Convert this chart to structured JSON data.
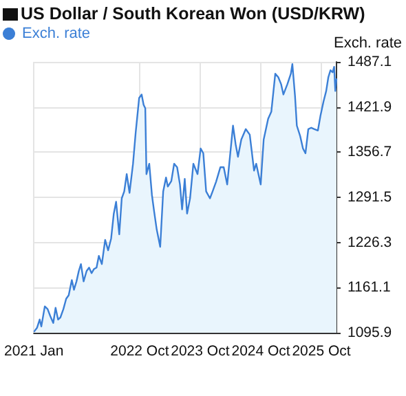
{
  "chart_data": {
    "type": "area",
    "title": "US Dollar / South Korean Won (USD/KRW)",
    "ylabel": "Exch. rate",
    "xlim": [
      "2021-01-01",
      "2025-12-31"
    ],
    "xticks": [
      {
        "value": "2021-01-01",
        "label": "2021 Jan"
      },
      {
        "value": "2022-10-01",
        "label": "2022 Oct"
      },
      {
        "value": "2023-10-01",
        "label": "2023 Oct"
      },
      {
        "value": "2024-10-01",
        "label": "2024 Oct"
      },
      {
        "value": "2025-10-01",
        "label": "2025 Oct"
      }
    ],
    "ylim": [
      1095.9,
      1487.1
    ],
    "yticks": [
      1095.9,
      1161.1,
      1226.3,
      1291.5,
      1356.7,
      1421.9,
      1487.1
    ],
    "grid": true,
    "legend": "top left",
    "marker": "none",
    "line_style": "solid",
    "series": [
      {
        "name": "Exch. rate",
        "color": "#3b7fd6",
        "x": [
          "2021-01-04",
          "2021-01-20",
          "2021-02-05",
          "2021-02-15",
          "2021-03-08",
          "2021-03-25",
          "2021-04-10",
          "2021-04-28",
          "2021-05-12",
          "2021-05-27",
          "2021-06-10",
          "2021-06-28",
          "2021-07-15",
          "2021-07-30",
          "2021-08-18",
          "2021-08-31",
          "2021-09-15",
          "2021-09-29",
          "2021-10-12",
          "2021-10-28",
          "2021-11-15",
          "2021-11-30",
          "2021-12-15",
          "2021-12-30",
          "2022-01-14",
          "2022-01-28",
          "2022-02-15",
          "2022-03-07",
          "2022-03-25",
          "2022-04-12",
          "2022-04-28",
          "2022-05-12",
          "2022-05-31",
          "2022-06-15",
          "2022-06-30",
          "2022-07-15",
          "2022-08-01",
          "2022-08-22",
          "2022-09-07",
          "2022-09-28",
          "2022-10-13",
          "2022-10-25",
          "2022-11-04",
          "2022-11-11",
          "2022-11-28",
          "2022-12-14",
          "2022-12-28",
          "2023-01-12",
          "2023-02-02",
          "2023-02-20",
          "2023-03-09",
          "2023-03-20",
          "2023-04-10",
          "2023-04-27",
          "2023-05-15",
          "2023-06-01",
          "2023-06-14",
          "2023-06-30",
          "2023-07-14",
          "2023-08-01",
          "2023-08-21",
          "2023-09-15",
          "2023-10-04",
          "2023-10-20",
          "2023-11-06",
          "2023-11-29",
          "2023-12-15",
          "2024-01-05",
          "2024-01-31",
          "2024-02-20",
          "2024-03-12",
          "2024-04-16",
          "2024-05-02",
          "2024-05-16",
          "2024-06-05",
          "2024-07-02",
          "2024-07-26",
          "2024-08-21",
          "2024-09-03",
          "2024-09-30",
          "2024-10-18",
          "2024-11-14",
          "2024-12-03",
          "2024-12-27",
          "2025-01-14",
          "2025-01-31",
          "2025-02-14",
          "2025-03-10",
          "2025-03-31",
          "2025-04-09",
          "2025-04-25",
          "2025-05-06",
          "2025-05-26",
          "2025-06-12",
          "2025-06-27",
          "2025-07-14",
          "2025-08-01",
          "2025-08-20",
          "2025-09-10",
          "2025-09-26",
          "2025-10-14",
          "2025-10-30",
          "2025-11-12",
          "2025-11-25",
          "2025-12-08",
          "2025-12-17",
          "2025-12-24",
          "2025-12-31"
        ],
        "values": [
          1098,
          1103,
          1115,
          1105,
          1134,
          1130,
          1120,
          1110,
          1132,
          1115,
          1118,
          1130,
          1145,
          1150,
          1172,
          1158,
          1170,
          1185,
          1195,
          1170,
          1185,
          1190,
          1182,
          1188,
          1190,
          1207,
          1195,
          1230,
          1215,
          1232,
          1268,
          1285,
          1238,
          1290,
          1300,
          1325,
          1298,
          1340,
          1385,
          1435,
          1440,
          1425,
          1420,
          1325,
          1340,
          1295,
          1270,
          1245,
          1220,
          1300,
          1320,
          1307,
          1315,
          1340,
          1335,
          1310,
          1274,
          1318,
          1268,
          1290,
          1340,
          1325,
          1362,
          1355,
          1300,
          1290,
          1300,
          1314,
          1335,
          1335,
          1310,
          1395,
          1368,
          1350,
          1375,
          1390,
          1382,
          1330,
          1340,
          1310,
          1375,
          1405,
          1415,
          1470,
          1465,
          1455,
          1440,
          1455,
          1470,
          1484,
          1438,
          1395,
          1380,
          1362,
          1355,
          1390,
          1392,
          1390,
          1388,
          1410,
          1430,
          1445,
          1465,
          1475,
          1472,
          1480,
          1445,
          1462
        ]
      }
    ]
  }
}
